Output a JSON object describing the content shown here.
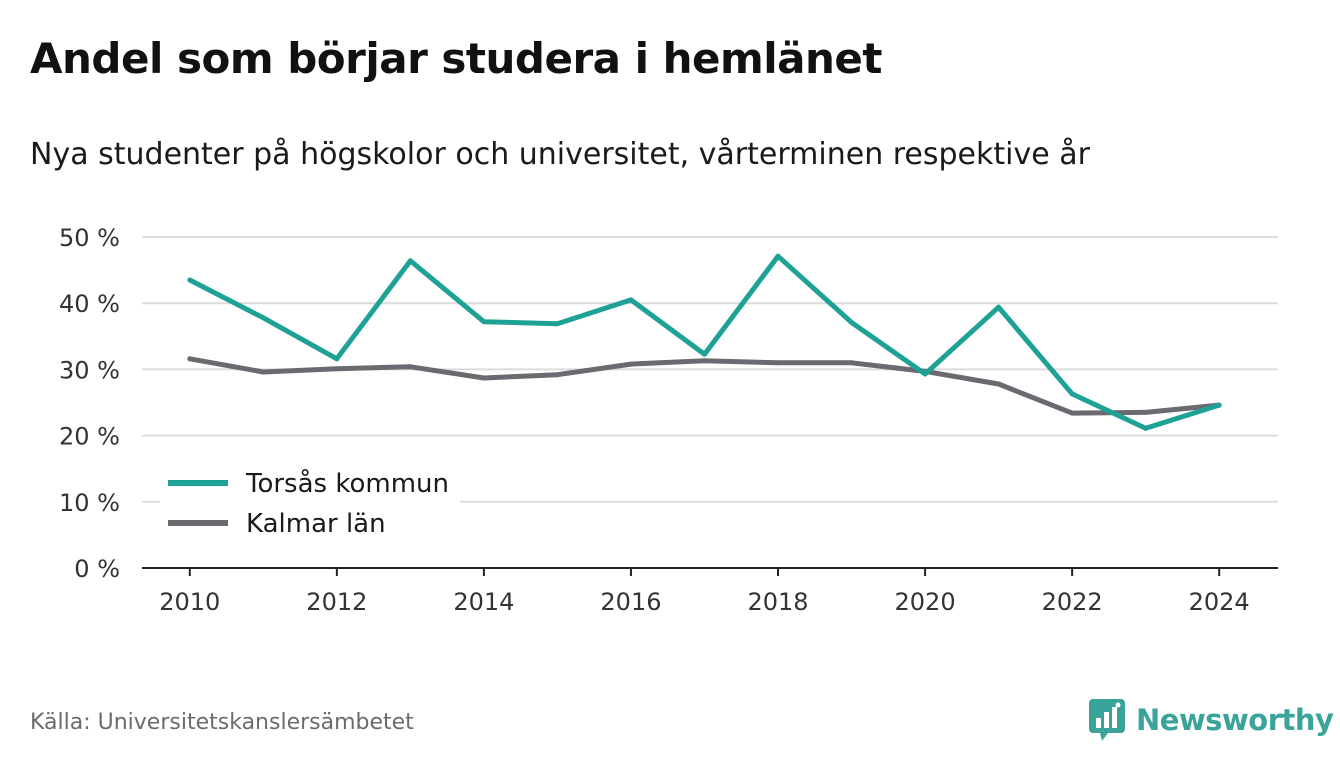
{
  "title": "Andel som börjar studera i hemlänet",
  "subtitle": "Nya studenter på högskolor och universitet, vårterminen respektive år",
  "source": "Källa: Universitetskanslersämbetet",
  "brand": {
    "name": "Newsworthy",
    "icon": "newsworthy-logo-icon",
    "color": "#3aa39a"
  },
  "chart_data": {
    "type": "line",
    "title": "Andel som börjar studera i hemlänet",
    "subtitle": "Nya studenter på högskolor och universitet, vårterminen respektive år",
    "x": [
      2010,
      2011,
      2012,
      2013,
      2014,
      2015,
      2016,
      2017,
      2018,
      2019,
      2020,
      2021,
      2022,
      2023,
      2024
    ],
    "x_ticks": [
      2010,
      2012,
      2014,
      2016,
      2018,
      2020,
      2022,
      2024
    ],
    "x_tick_labels": [
      "2010",
      "2012",
      "2014",
      "2016",
      "2018",
      "2020",
      "2022",
      "2024"
    ],
    "y_ticks": [
      0,
      10,
      20,
      30,
      40,
      50
    ],
    "y_tick_labels": [
      "0 %",
      "10 %",
      "20 %",
      "30 %",
      "40 %",
      "50 %"
    ],
    "ylim": [
      0,
      50
    ],
    "xlim": [
      2009.35,
      2024.8
    ],
    "grid": true,
    "legend_position": "bottom-left",
    "series": [
      {
        "name": "Torsås kommun",
        "color": "#1ea296",
        "values": [
          43.5,
          37.8,
          31.6,
          46.4,
          37.2,
          36.9,
          40.5,
          32.3,
          47.1,
          37.1,
          29.3,
          39.4,
          26.3,
          21.1,
          24.6
        ]
      },
      {
        "name": "Kalmar län",
        "color": "#6b6a70",
        "values": [
          31.6,
          29.6,
          30.1,
          30.4,
          28.7,
          29.2,
          30.8,
          31.3,
          31.0,
          31.0,
          29.7,
          27.8,
          23.4,
          23.5,
          24.6
        ]
      }
    ]
  }
}
